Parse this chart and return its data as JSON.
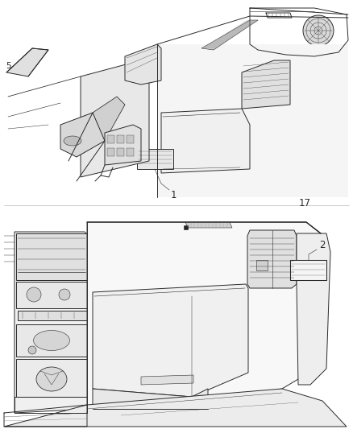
{
  "background_color": "#ffffff",
  "label_1": "1",
  "label_2": "2",
  "label_17": "17",
  "label_5": "5",
  "fig_width": 4.38,
  "fig_height": 5.33,
  "dpi": 100,
  "line_color": "#2a2a2a",
  "light_line_color": "#555555",
  "label_fontsize": 8.5,
  "line_width": 0.7,
  "thin_lw": 0.4,
  "thick_lw": 1.0
}
